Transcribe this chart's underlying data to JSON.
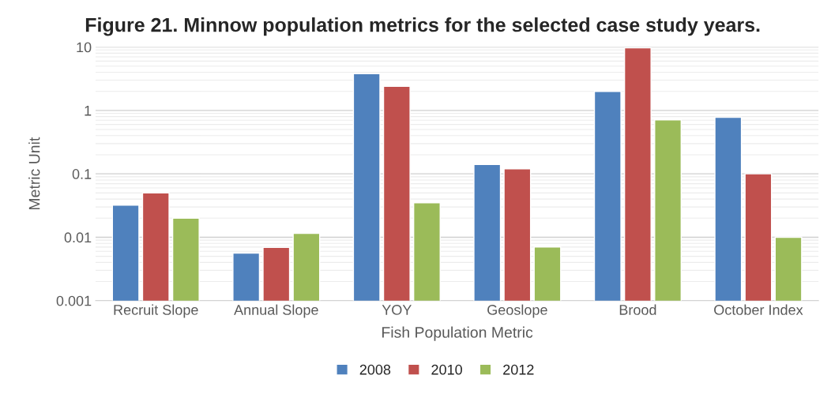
{
  "chart_data": {
    "type": "bar",
    "title": "Figure 21. Minnow population metrics for the selected case study years.",
    "xlabel": "Fish Population Metric",
    "ylabel": "Metric Unit",
    "categories": [
      "Recruit Slope",
      "Annual Slope",
      "YOY",
      "Geoslope",
      "Brood",
      "October Index"
    ],
    "series": [
      {
        "name": "2008",
        "color": "#4f81bd",
        "values": [
          0.032,
          0.0056,
          3.8,
          0.14,
          2.0,
          0.78
        ]
      },
      {
        "name": "2010",
        "color": "#c0504d",
        "values": [
          0.05,
          0.0069,
          2.4,
          0.12,
          9.7,
          0.1
        ]
      },
      {
        "name": "2012",
        "color": "#9bbb59",
        "values": [
          0.02,
          0.0115,
          0.035,
          0.007,
          0.71,
          0.01
        ]
      }
    ],
    "log": "y",
    "ylim": [
      0.001,
      10
    ],
    "yticks": [
      0.001,
      0.01,
      0.1,
      1,
      10
    ],
    "grid": "y",
    "legend": "bottom"
  }
}
